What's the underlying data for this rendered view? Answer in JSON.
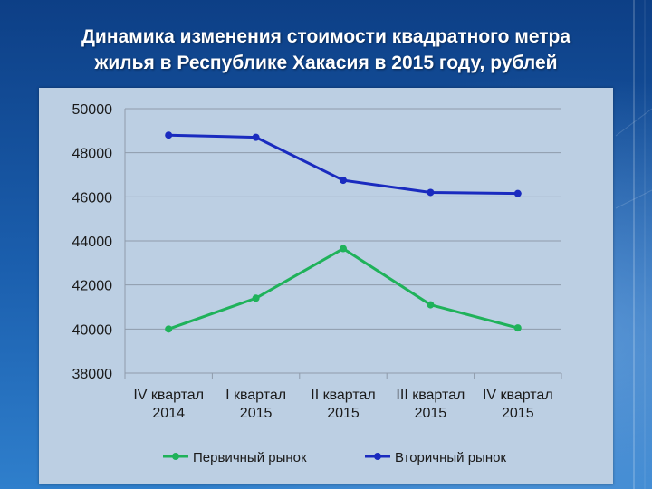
{
  "header": {
    "title_line1": "Динамика изменения стоимости квадратного метра",
    "title_line2": "жилья в Республике Хакасия в 2015 году, рублей"
  },
  "chart_data": {
    "type": "line",
    "categories": [
      [
        "IV квартал",
        "2014"
      ],
      [
        "I квартал",
        "2015"
      ],
      [
        "II квартал",
        "2015"
      ],
      [
        "III квартал",
        "2015"
      ],
      [
        "IV квартал",
        "2015"
      ]
    ],
    "series": [
      {
        "name": "Первичный рынок",
        "color": "#1fb25a",
        "values": [
          40000,
          41400,
          43650,
          41100,
          40050
        ]
      },
      {
        "name": "Вторичный рынок",
        "color": "#1a2bbf",
        "values": [
          48800,
          48700,
          46750,
          46200,
          46150
        ]
      }
    ],
    "ylim": [
      38000,
      50000
    ],
    "yticks": [
      50000,
      48000,
      46000,
      44000,
      42000,
      40000,
      38000
    ],
    "grid": true,
    "legend_position": "bottom"
  }
}
